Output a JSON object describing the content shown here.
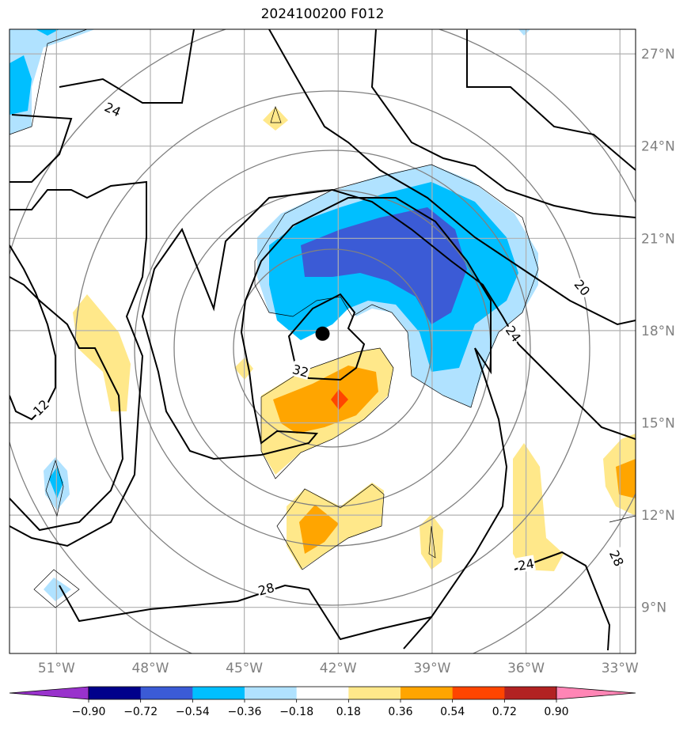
{
  "title": "2024100200 F012",
  "map": {
    "lat_labels": [
      "27°N",
      "24°N",
      "21°N",
      "18°N",
      "15°N",
      "12°N",
      "9°N"
    ],
    "lat_values": [
      27,
      24,
      21,
      18,
      15,
      12,
      9
    ],
    "lon_labels": [
      "51°W",
      "48°W",
      "45°W",
      "42°W",
      "39°W",
      "36°W",
      "33°W"
    ],
    "lon_values": [
      -51,
      -48,
      -45,
      -42,
      -39,
      -36,
      -33
    ],
    "lon_range": [
      -52.5,
      -32.5
    ],
    "lat_range": [
      7.5,
      27.8
    ],
    "storm_center": {
      "lon": -42.5,
      "lat": 17.9
    },
    "contour_labels": [
      {
        "text": "24",
        "lon": -49.2,
        "lat": 25.2,
        "rotate": 25
      },
      {
        "text": "20",
        "lon": -34.2,
        "lat": 19.4,
        "rotate": 50
      },
      {
        "text": "24",
        "lon": -36.4,
        "lat": 17.9,
        "rotate": 55
      },
      {
        "text": "32",
        "lon": -43.2,
        "lat": 16.7,
        "rotate": 15
      },
      {
        "text": "12",
        "lon": -51.5,
        "lat": 15.5,
        "rotate": -45
      },
      {
        "text": "28",
        "lon": -44.3,
        "lat": 9.6,
        "rotate": -15
      },
      {
        "text": "24",
        "lon": -36.0,
        "lat": 10.4,
        "rotate": -10
      },
      {
        "text": "28",
        "lon": -33.1,
        "lat": 10.6,
        "rotate": 65
      }
    ],
    "colors": {
      "grid": "#b0b0b0",
      "rings": "#808080",
      "contour": "#000000"
    }
  },
  "colorbar": {
    "ticks": [
      "−0.90",
      "−0.72",
      "−0.54",
      "−0.36",
      "−0.18",
      "0.18",
      "0.36",
      "0.54",
      "0.72",
      "0.90"
    ],
    "colors": [
      "#9932cc",
      "#00008b",
      "#3b5bd6",
      "#00bfff",
      "#b0e2ff",
      "#ffffff",
      "#ffe88a",
      "#ffa500",
      "#ff4500",
      "#b22222",
      "#ff85b5"
    ]
  }
}
